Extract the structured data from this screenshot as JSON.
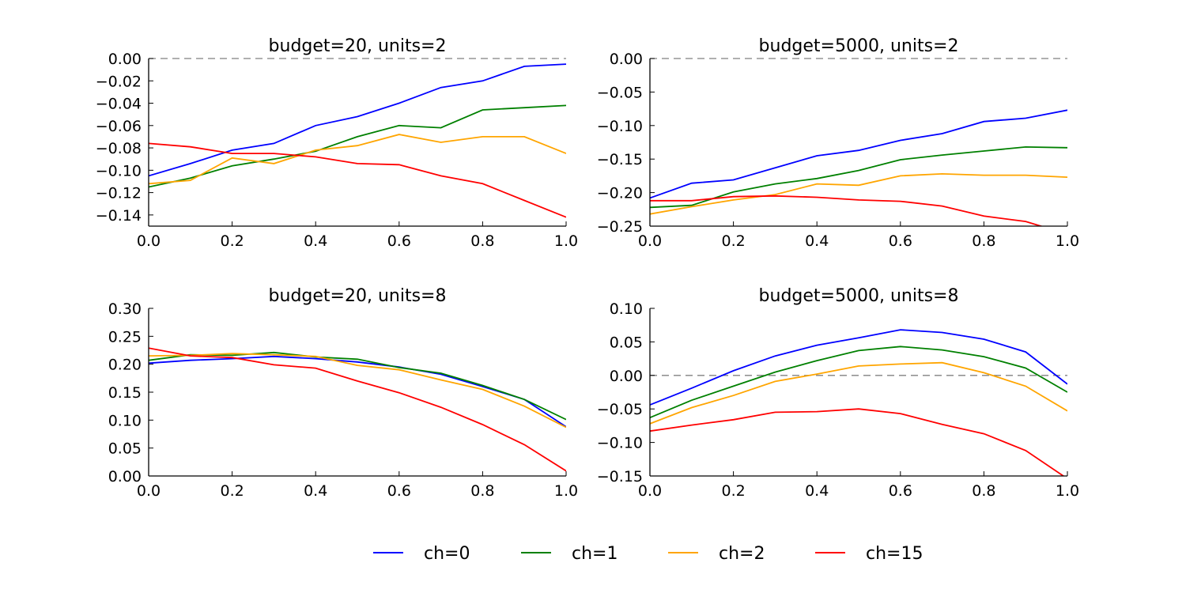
{
  "legend": [
    {
      "label": "ch=0",
      "color": "#0000ff"
    },
    {
      "label": "ch=1",
      "color": "#008000"
    },
    {
      "label": "ch=2",
      "color": "#ffa500"
    },
    {
      "label": "ch=15",
      "color": "#ff0000"
    }
  ],
  "chart_data": [
    {
      "type": "line",
      "title": "budget=20, units=2",
      "x": [
        0.0,
        0.1,
        0.2,
        0.3,
        0.4,
        0.5,
        0.6,
        0.7,
        0.8,
        0.9,
        1.0
      ],
      "xlim": [
        0.0,
        1.0
      ],
      "ylim": [
        -0.15,
        0.0
      ],
      "xticks": [
        "0.0",
        "0.2",
        "0.4",
        "0.6",
        "0.8",
        "1.0"
      ],
      "yticks": [
        "0.00",
        "−0.02",
        "−0.04",
        "−0.06",
        "−0.08",
        "−0.10",
        "−0.12",
        "−0.14"
      ],
      "reference_line": 0.0,
      "series": [
        {
          "name": "ch=0",
          "color": "#0000ff",
          "values": [
            -0.105,
            -0.094,
            -0.082,
            -0.076,
            -0.06,
            -0.052,
            -0.04,
            -0.026,
            -0.02,
            -0.007,
            -0.005
          ]
        },
        {
          "name": "ch=1",
          "color": "#008000",
          "values": [
            -0.115,
            -0.107,
            -0.096,
            -0.09,
            -0.083,
            -0.07,
            -0.06,
            -0.062,
            -0.046,
            -0.044,
            -0.042
          ]
        },
        {
          "name": "ch=2",
          "color": "#ffa500",
          "values": [
            -0.112,
            -0.109,
            -0.089,
            -0.094,
            -0.082,
            -0.078,
            -0.068,
            -0.075,
            -0.07,
            -0.07,
            -0.085
          ]
        },
        {
          "name": "ch=15",
          "color": "#ff0000",
          "values": [
            -0.076,
            -0.079,
            -0.085,
            -0.085,
            -0.088,
            -0.094,
            -0.095,
            -0.105,
            -0.112,
            -0.127,
            -0.142
          ]
        }
      ]
    },
    {
      "type": "line",
      "title": "budget=5000, units=2",
      "x": [
        0.0,
        0.1,
        0.2,
        0.3,
        0.4,
        0.5,
        0.6,
        0.7,
        0.8,
        0.9,
        1.0
      ],
      "xlim": [
        0.0,
        1.0
      ],
      "ylim": [
        -0.25,
        0.0
      ],
      "xticks": [
        "0.0",
        "0.2",
        "0.4",
        "0.6",
        "0.8",
        "1.0"
      ],
      "yticks": [
        "0.00",
        "−0.05",
        "−0.10",
        "−0.15",
        "−0.20",
        "−0.25"
      ],
      "reference_line": 0.0,
      "series": [
        {
          "name": "ch=0",
          "color": "#0000ff",
          "values": [
            -0.208,
            -0.186,
            -0.181,
            -0.163,
            -0.145,
            -0.137,
            -0.122,
            -0.112,
            -0.094,
            -0.089,
            -0.077
          ]
        },
        {
          "name": "ch=1",
          "color": "#008000",
          "values": [
            -0.222,
            -0.219,
            -0.199,
            -0.187,
            -0.179,
            -0.167,
            -0.151,
            -0.144,
            -0.138,
            -0.132,
            -0.133
          ]
        },
        {
          "name": "ch=2",
          "color": "#ffa500",
          "values": [
            -0.232,
            -0.221,
            -0.211,
            -0.203,
            -0.187,
            -0.189,
            -0.175,
            -0.172,
            -0.174,
            -0.174,
            -0.177
          ]
        },
        {
          "name": "ch=15",
          "color": "#ff0000",
          "values": [
            -0.212,
            -0.212,
            -0.206,
            -0.205,
            -0.207,
            -0.211,
            -0.213,
            -0.22,
            -0.235,
            -0.243,
            -0.262
          ]
        }
      ]
    },
    {
      "type": "line",
      "title": "budget=20, units=8",
      "x": [
        0.0,
        0.1,
        0.2,
        0.3,
        0.4,
        0.5,
        0.6,
        0.7,
        0.8,
        0.9,
        1.0
      ],
      "xlim": [
        0.0,
        1.0
      ],
      "ylim": [
        0.0,
        0.3
      ],
      "xticks": [
        "0.0",
        "0.2",
        "0.4",
        "0.6",
        "0.8",
        "1.0"
      ],
      "yticks": [
        "0.30",
        "0.25",
        "0.20",
        "0.15",
        "0.10",
        "0.05",
        "0.00"
      ],
      "reference_line": null,
      "series": [
        {
          "name": "ch=0",
          "color": "#0000ff",
          "values": [
            0.202,
            0.207,
            0.21,
            0.214,
            0.21,
            0.204,
            0.195,
            0.182,
            0.16,
            0.137,
            0.088
          ]
        },
        {
          "name": "ch=1",
          "color": "#008000",
          "values": [
            0.207,
            0.217,
            0.216,
            0.221,
            0.213,
            0.209,
            0.194,
            0.184,
            0.162,
            0.137,
            0.101
          ]
        },
        {
          "name": "ch=2",
          "color": "#ffa500",
          "values": [
            0.215,
            0.216,
            0.219,
            0.217,
            0.214,
            0.198,
            0.19,
            0.172,
            0.155,
            0.125,
            0.087
          ]
        },
        {
          "name": "ch=15",
          "color": "#ff0000",
          "values": [
            0.229,
            0.215,
            0.212,
            0.199,
            0.193,
            0.17,
            0.149,
            0.123,
            0.092,
            0.056,
            0.009
          ]
        }
      ]
    },
    {
      "type": "line",
      "title": "budget=5000, units=8",
      "x": [
        0.0,
        0.1,
        0.2,
        0.3,
        0.4,
        0.5,
        0.6,
        0.7,
        0.8,
        0.9,
        1.0
      ],
      "xlim": [
        0.0,
        1.0
      ],
      "ylim": [
        -0.15,
        0.1
      ],
      "xticks": [
        "0.0",
        "0.2",
        "0.4",
        "0.6",
        "0.8",
        "1.0"
      ],
      "yticks": [
        "0.10",
        "0.05",
        "0.00",
        "−0.05",
        "−0.10",
        "−0.15"
      ],
      "reference_line": 0.0,
      "series": [
        {
          "name": "ch=0",
          "color": "#0000ff",
          "values": [
            -0.044,
            -0.019,
            0.007,
            0.029,
            0.045,
            0.056,
            0.068,
            0.064,
            0.054,
            0.035,
            -0.013
          ]
        },
        {
          "name": "ch=1",
          "color": "#008000",
          "values": [
            -0.063,
            -0.037,
            -0.016,
            0.005,
            0.022,
            0.037,
            0.043,
            0.038,
            0.028,
            0.011,
            -0.025
          ]
        },
        {
          "name": "ch=2",
          "color": "#ffa500",
          "values": [
            -0.072,
            -0.048,
            -0.03,
            -0.009,
            0.002,
            0.014,
            0.017,
            0.019,
            0.004,
            -0.016,
            -0.053
          ]
        },
        {
          "name": "ch=15",
          "color": "#ff0000",
          "values": [
            -0.083,
            -0.074,
            -0.066,
            -0.055,
            -0.054,
            -0.05,
            -0.057,
            -0.073,
            -0.087,
            -0.112,
            -0.154
          ]
        }
      ]
    }
  ]
}
